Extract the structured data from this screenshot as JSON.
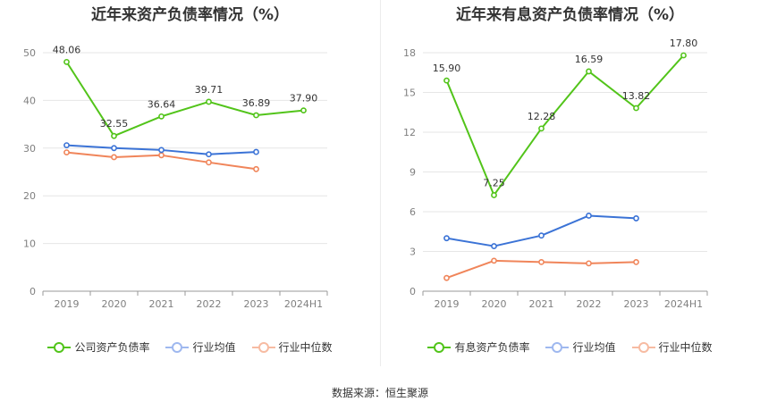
{
  "source": "数据来源：恒生聚源",
  "chart_data": [
    {
      "type": "line",
      "title": "近年来资产负债率情况（%）",
      "categories": [
        "2019",
        "2020",
        "2021",
        "2022",
        "2023",
        "2024H1"
      ],
      "ylim": [
        0,
        50
      ],
      "yticks": [
        0,
        10,
        20,
        30,
        40,
        50
      ],
      "grid": true,
      "legend_position": "bottom",
      "series": [
        {
          "name": "公司资产负债率",
          "color": "#52c41a",
          "values": [
            48.06,
            32.55,
            36.64,
            39.71,
            36.89,
            37.9
          ],
          "labels": [
            "48.06",
            "32.55",
            "36.64",
            "39.71",
            "36.89",
            "37.90"
          ]
        },
        {
          "name": "行业均值",
          "color": "#3b73d6",
          "values": [
            30.6,
            30.0,
            29.6,
            28.7,
            29.2,
            null
          ]
        },
        {
          "name": "行业中位数",
          "color": "#f0855a",
          "values": [
            29.1,
            28.1,
            28.5,
            27.0,
            25.6,
            null
          ]
        }
      ]
    },
    {
      "type": "line",
      "title": "近年来有息资产负债率情况（%）",
      "categories": [
        "2019",
        "2020",
        "2021",
        "2022",
        "2023",
        "2024H1"
      ],
      "ylim": [
        0,
        18
      ],
      "yticks": [
        0,
        3,
        6,
        9,
        12,
        15,
        18
      ],
      "grid": true,
      "legend_position": "bottom",
      "series": [
        {
          "name": "有息资产负债率",
          "color": "#52c41a",
          "values": [
            15.9,
            7.25,
            12.28,
            16.59,
            13.82,
            17.8
          ],
          "labels": [
            "15.90",
            "7.25",
            "12.28",
            "16.59",
            "13.82",
            "17.80"
          ]
        },
        {
          "name": "行业均值",
          "color": "#3b73d6",
          "values": [
            4.0,
            3.4,
            4.2,
            5.7,
            5.5,
            null
          ]
        },
        {
          "name": "行业中位数",
          "color": "#f0855a",
          "values": [
            1.0,
            2.3,
            2.2,
            2.1,
            2.2,
            null
          ]
        }
      ]
    }
  ]
}
